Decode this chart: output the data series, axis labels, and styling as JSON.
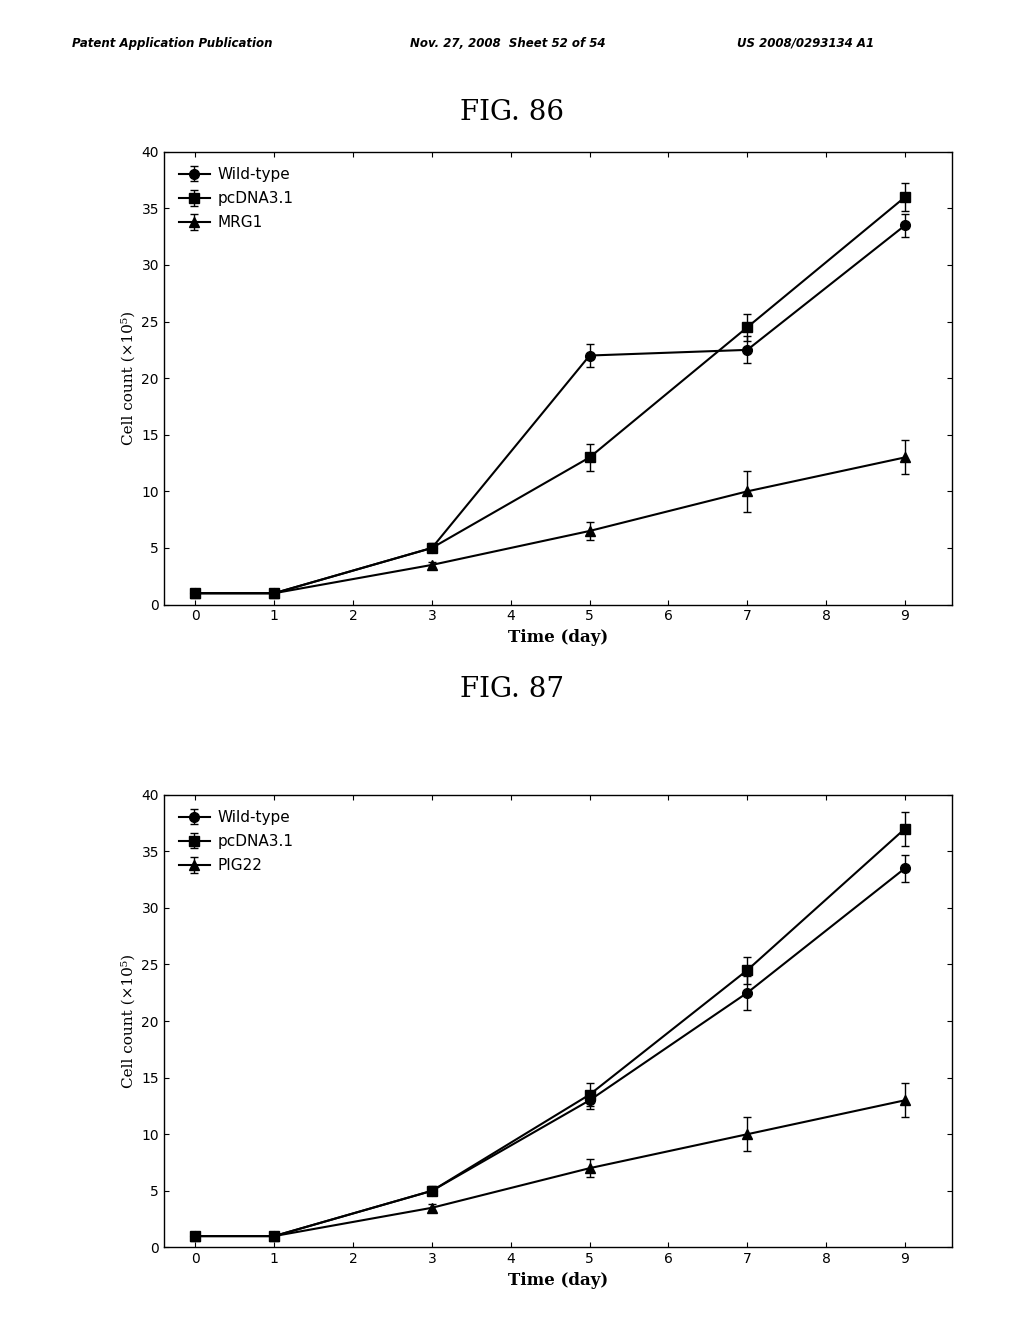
{
  "header_left": "Patent Application Publication",
  "header_mid": "Nov. 27, 2008  Sheet 52 of 54",
  "header_right": "US 2008/0293134 A1",
  "fig86_title": "FIG. 86",
  "fig87_title": "FIG. 87",
  "x": [
    0,
    1,
    3,
    5,
    7,
    9
  ],
  "fig86": {
    "wild_type": [
      1.0,
      1.0,
      5.0,
      22.0,
      22.5,
      33.5
    ],
    "wild_type_err": [
      0.0,
      0.1,
      0.3,
      1.0,
      1.2,
      1.0
    ],
    "pcDNA31": [
      1.0,
      1.0,
      5.0,
      13.0,
      24.5,
      36.0
    ],
    "pcDNA31_err": [
      0.0,
      0.1,
      0.4,
      1.2,
      1.2,
      1.2
    ],
    "mrg1": [
      1.0,
      1.0,
      3.5,
      6.5,
      10.0,
      13.0
    ],
    "mrg1_err": [
      0.0,
      0.1,
      0.3,
      0.8,
      1.8,
      1.5
    ],
    "legend_labels": [
      "Wild-type",
      "pcDNA3.1",
      "MRG1"
    ],
    "ylabel": "Cell count (×10⁵)",
    "xlabel": "Time (day)",
    "ylim": [
      0,
      40
    ],
    "yticks": [
      0,
      5,
      10,
      15,
      20,
      25,
      30,
      35,
      40
    ],
    "xticks": [
      0,
      1,
      2,
      3,
      4,
      5,
      6,
      7,
      8,
      9
    ]
  },
  "fig87": {
    "wild_type": [
      1.0,
      1.0,
      5.0,
      13.0,
      22.5,
      33.5
    ],
    "wild_type_err": [
      0.0,
      0.1,
      0.3,
      0.8,
      1.5,
      1.2
    ],
    "pcDNA31": [
      1.0,
      1.0,
      5.0,
      13.5,
      24.5,
      37.0
    ],
    "pcDNA31_err": [
      0.0,
      0.1,
      0.4,
      1.0,
      1.2,
      1.5
    ],
    "pig22": [
      1.0,
      1.0,
      3.5,
      7.0,
      10.0,
      13.0
    ],
    "pig22_err": [
      0.0,
      0.1,
      0.3,
      0.8,
      1.5,
      1.5
    ],
    "legend_labels": [
      "Wild-type",
      "pcDNA3.1",
      "PIG22"
    ],
    "ylabel": "Cell count (×10⁵)",
    "xlabel": "Time (day)",
    "ylim": [
      0,
      40
    ],
    "yticks": [
      0,
      5,
      10,
      15,
      20,
      25,
      30,
      35,
      40
    ],
    "xticks": [
      0,
      1,
      2,
      3,
      4,
      5,
      6,
      7,
      8,
      9
    ]
  },
  "line_color": "#000000",
  "background_color": "#ffffff",
  "marker_wild_type": "o",
  "marker_pcDNA31": "s",
  "marker_third": "^",
  "marker_size": 7,
  "linewidth": 1.5,
  "capsize": 3,
  "elinewidth": 1.0
}
